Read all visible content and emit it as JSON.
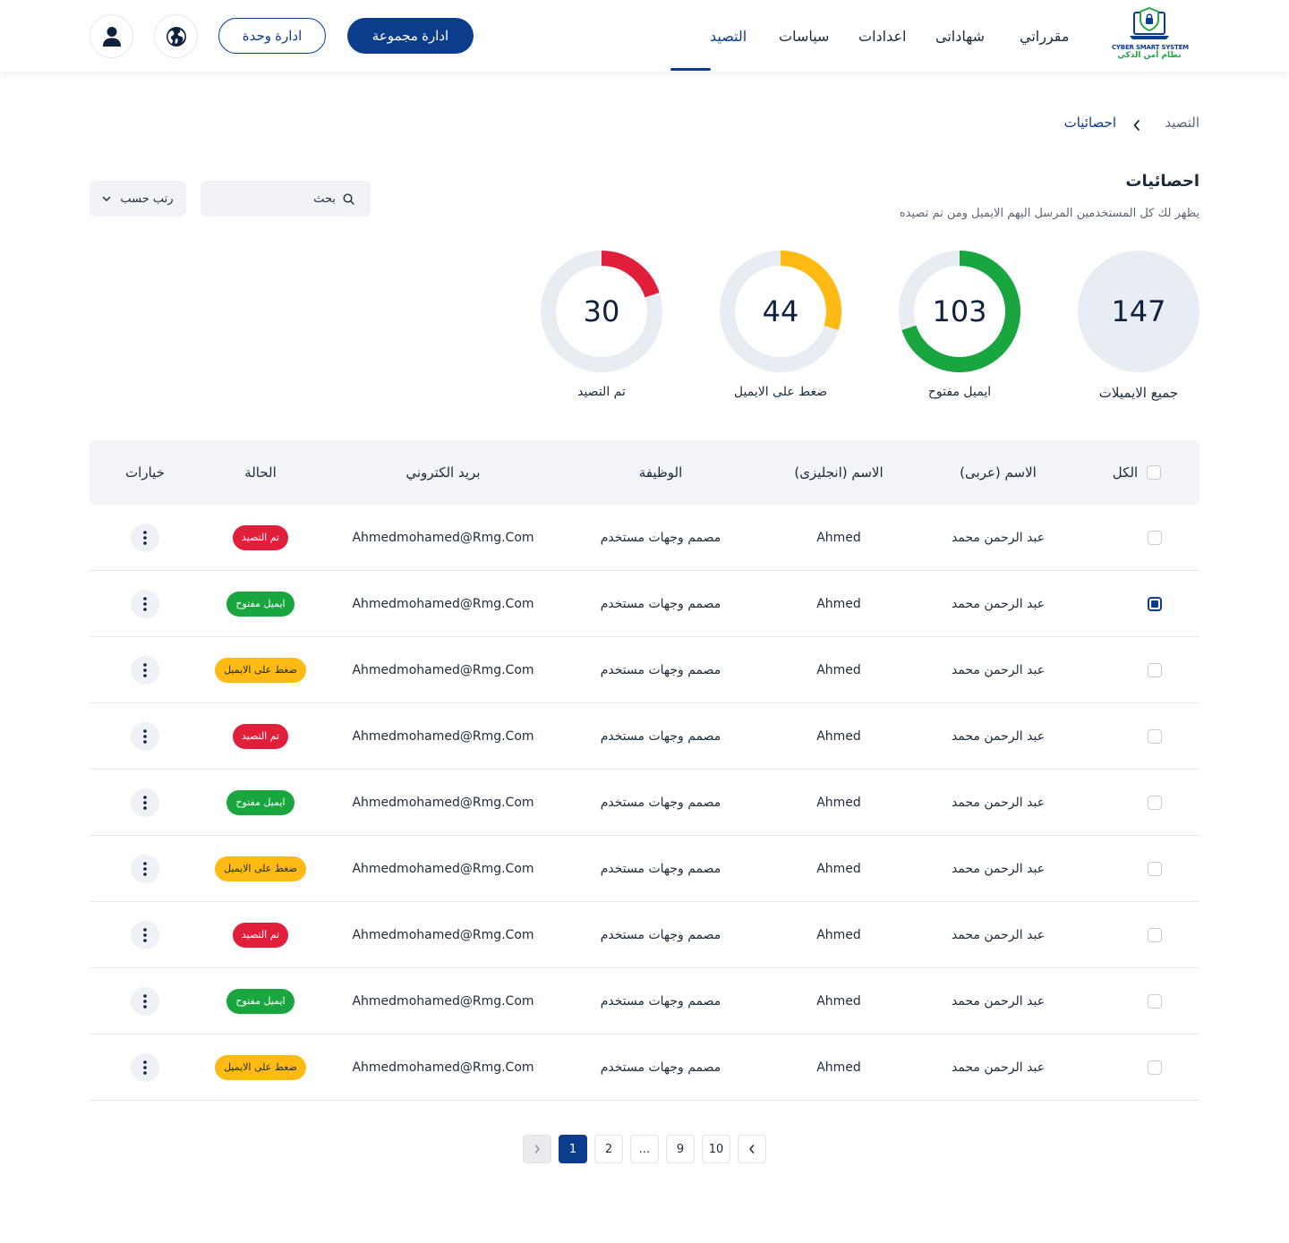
{
  "colors": {
    "primary": "#0b3d8c",
    "green": "#1aa63f",
    "red": "#e0203b",
    "yellow": "#ffbb14",
    "track": "#e8edf4"
  },
  "header": {
    "logo_en": "CYBER SMART SYSTEM",
    "logo_ar": "نظام أمن الذكي",
    "nav": [
      "مقرراتي",
      "شهاداتى",
      "اعدادات",
      "سياسات",
      "التصيد"
    ],
    "btn_group": "ادارة مجموعة",
    "btn_unit": "ادارة وحدة",
    "icons": [
      "globe-icon",
      "user-icon"
    ]
  },
  "breadcrumb": {
    "root": "التصيد",
    "current": "احصائيات"
  },
  "page": {
    "title": "احصائيات",
    "subtitle": "يظهر لك كل المستخدمين المرسل اليهم الايميل ومن تم تصيده"
  },
  "search": {
    "placeholder": "بحث"
  },
  "sort": {
    "label": "رتب حسب"
  },
  "stats": [
    {
      "value": "147",
      "label": "جميع الايميلات"
    },
    {
      "value": "103",
      "label": "ايميل مفتوح",
      "fraction": 0.7
    },
    {
      "value": "44",
      "label": "ضغط على الايميل",
      "fraction": 0.3
    },
    {
      "value": "30",
      "label": "تم التصيد",
      "fraction": 0.2
    }
  ],
  "table": {
    "headers": {
      "all": "الكل",
      "name_ar": "الاسم (عربى)",
      "name_en": "الاسم (انجليزى)",
      "job": "الوظيفة",
      "email": "بريد الكتروني",
      "status": "الحالة",
      "options": "خيارات"
    },
    "rows": [
      {
        "name_ar": "عبد الرحمن محمد",
        "name_en": "Ahmed",
        "job": "مصمم وجهات مستخدم",
        "email": "Ahmedmohamed@Rmg.Com",
        "status": "تم التصيد",
        "status_color": "#e0203b",
        "status_text_color": "#ffffff"
      },
      {
        "name_ar": "عبد الرحمن محمد",
        "name_en": "Ahmed",
        "job": "مصمم وجهات مستخدم",
        "email": "Ahmedmohamed@Rmg.Com",
        "status": "ايميل مفتوح",
        "status_color": "#1aa63f",
        "status_text_color": "#ffffff"
      },
      {
        "name_ar": "عبد الرحمن محمد",
        "name_en": "Ahmed",
        "job": "مصمم وجهات مستخدم",
        "email": "Ahmedmohamed@Rmg.Com",
        "status": "ضغط على الايميل",
        "status_color": "#ffbb14",
        "status_text_color": "#1c2b3a"
      },
      {
        "name_ar": "عبد الرحمن محمد",
        "name_en": "Ahmed",
        "job": "مصمم وجهات مستخدم",
        "email": "Ahmedmohamed@Rmg.Com",
        "status": "تم التصيد",
        "status_color": "#e0203b",
        "status_text_color": "#ffffff"
      },
      {
        "name_ar": "عبد الرحمن محمد",
        "name_en": "Ahmed",
        "job": "مصمم وجهات مستخدم",
        "email": "Ahmedmohamed@Rmg.Com",
        "status": "ايميل مفتوح",
        "status_color": "#1aa63f",
        "status_text_color": "#ffffff"
      },
      {
        "name_ar": "عبد الرحمن محمد",
        "name_en": "Ahmed",
        "job": "مصمم وجهات مستخدم",
        "email": "Ahmedmohamed@Rmg.Com",
        "status": "ضغط على الايميل",
        "status_color": "#ffbb14",
        "status_text_color": "#1c2b3a"
      },
      {
        "name_ar": "عبد الرحمن محمد",
        "name_en": "Ahmed",
        "job": "مصمم وجهات مستخدم",
        "email": "Ahmedmohamed@Rmg.Com",
        "status": "تم التصيد",
        "status_color": "#e0203b",
        "status_text_color": "#ffffff"
      },
      {
        "name_ar": "عبد الرحمن محمد",
        "name_en": "Ahmed",
        "job": "مصمم وجهات مستخدم",
        "email": "Ahmedmohamed@Rmg.Com",
        "status": "ايميل مفتوح",
        "status_color": "#1aa63f",
        "status_text_color": "#ffffff"
      },
      {
        "name_ar": "عبد الرحمن محمد",
        "name_en": "Ahmed",
        "job": "مصمم وجهات مستخدم",
        "email": "Ahmedmohamed@Rmg.Com",
        "status": "ضغط على الايميل",
        "status_color": "#ffbb14",
        "status_text_color": "#1c2b3a"
      }
    ],
    "checked_row": 1
  },
  "pagination": {
    "pages": [
      "1",
      "2",
      "...",
      "9",
      "10"
    ],
    "active": "1"
  }
}
